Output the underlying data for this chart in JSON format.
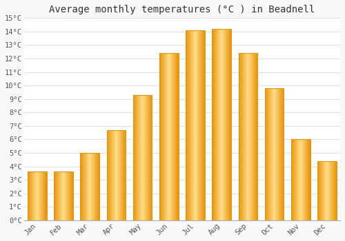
{
  "title": "Average monthly temperatures (°C ) in Beadnell",
  "months": [
    "Jan",
    "Feb",
    "Mar",
    "Apr",
    "May",
    "Jun",
    "Jul",
    "Aug",
    "Sep",
    "Oct",
    "Nov",
    "Dec"
  ],
  "values": [
    3.6,
    3.6,
    5.0,
    6.7,
    9.3,
    12.4,
    14.1,
    14.2,
    12.4,
    9.8,
    6.0,
    4.4
  ],
  "bar_color_main": "#FDB527",
  "bar_color_edge": "#E8940A",
  "bar_color_light": "#FFDD88",
  "ylim": [
    0,
    15
  ],
  "yticks": [
    0,
    1,
    2,
    3,
    4,
    5,
    6,
    7,
    8,
    9,
    10,
    11,
    12,
    13,
    14,
    15
  ],
  "background_color": "#f8f8f8",
  "plot_bg_color": "#ffffff",
  "grid_color": "#e0e0e0",
  "title_fontsize": 10,
  "tick_fontsize": 7.5,
  "font_family": "monospace",
  "bar_width": 0.72
}
